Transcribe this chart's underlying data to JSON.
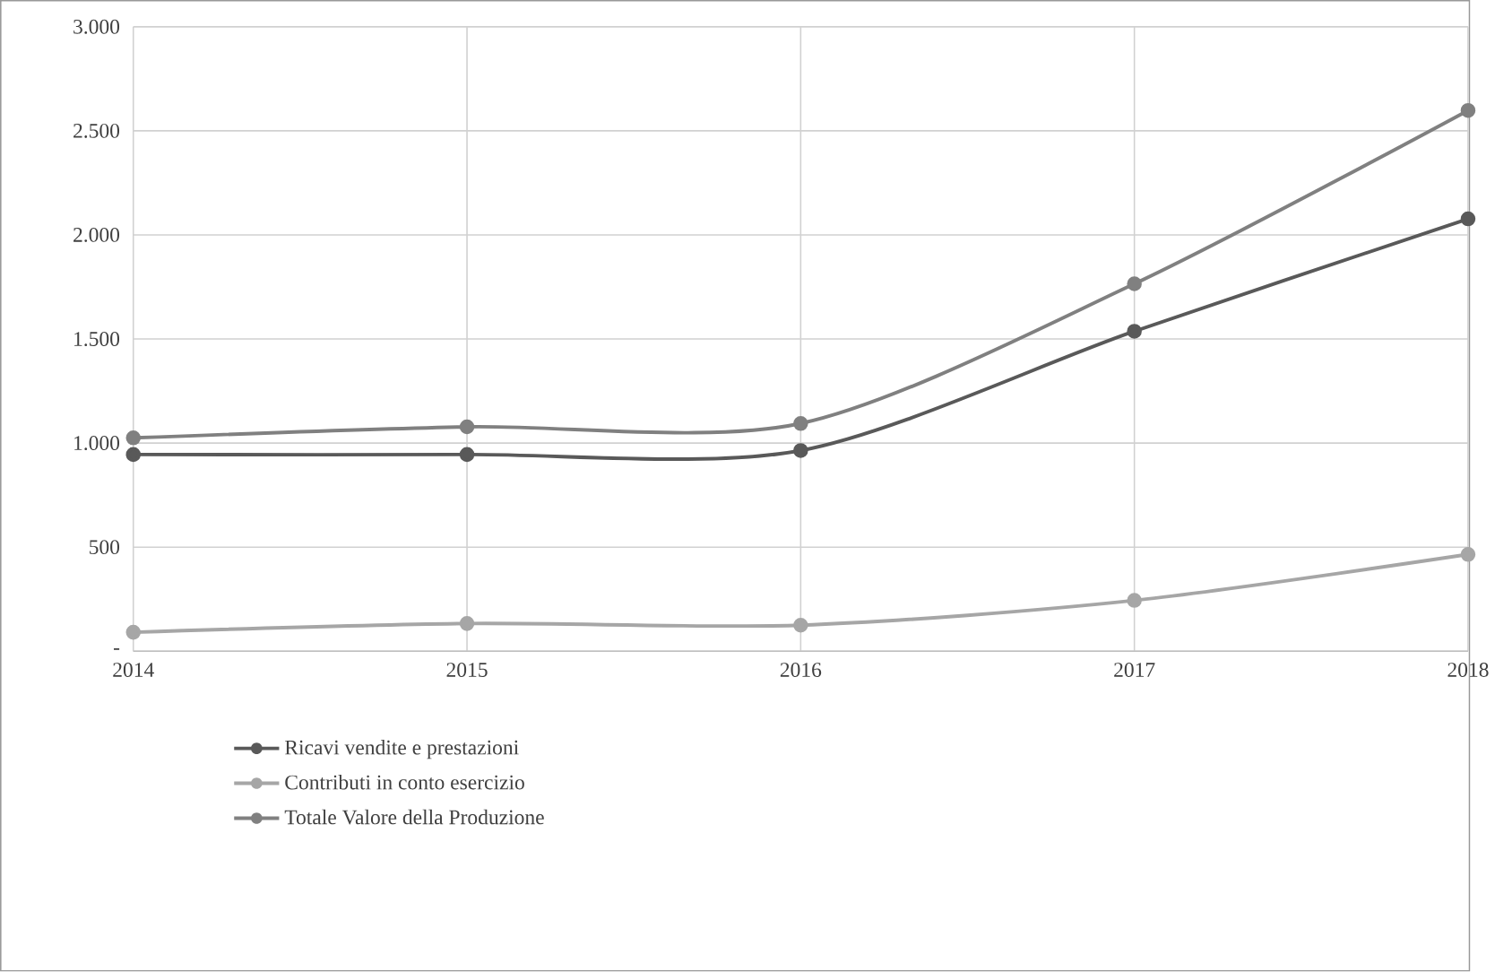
{
  "chart_data": {
    "type": "line",
    "categories": [
      "2014",
      "2015",
      "2016",
      "2017",
      "2018"
    ],
    "series": [
      {
        "name": "Ricavi vendite e prestazioni",
        "color": "#595959",
        "values": [
          945,
          945,
          964,
          1537,
          2077
        ]
      },
      {
        "name": "Contributi in conto esercizio",
        "color": "#a6a6a6",
        "values": [
          91,
          133,
          125,
          244,
          465
        ]
      },
      {
        "name": "Totale Valore della Produzione",
        "color": "#808080",
        "values": [
          1025,
          1078,
          1094,
          1765,
          2598
        ]
      }
    ],
    "ylim": [
      0,
      3000
    ],
    "yticks": [
      {
        "value": 0,
        "label": "-"
      },
      {
        "value": 500,
        "label": "500"
      },
      {
        "value": 1000,
        "label": "1.000"
      },
      {
        "value": 1500,
        "label": "1.500"
      },
      {
        "value": 2000,
        "label": "2.000"
      },
      {
        "value": 2500,
        "label": "2.500"
      },
      {
        "value": 3000,
        "label": "3.000"
      }
    ],
    "grid": true,
    "legend": "bottom left",
    "marker": "circle",
    "line_style": "solid"
  }
}
